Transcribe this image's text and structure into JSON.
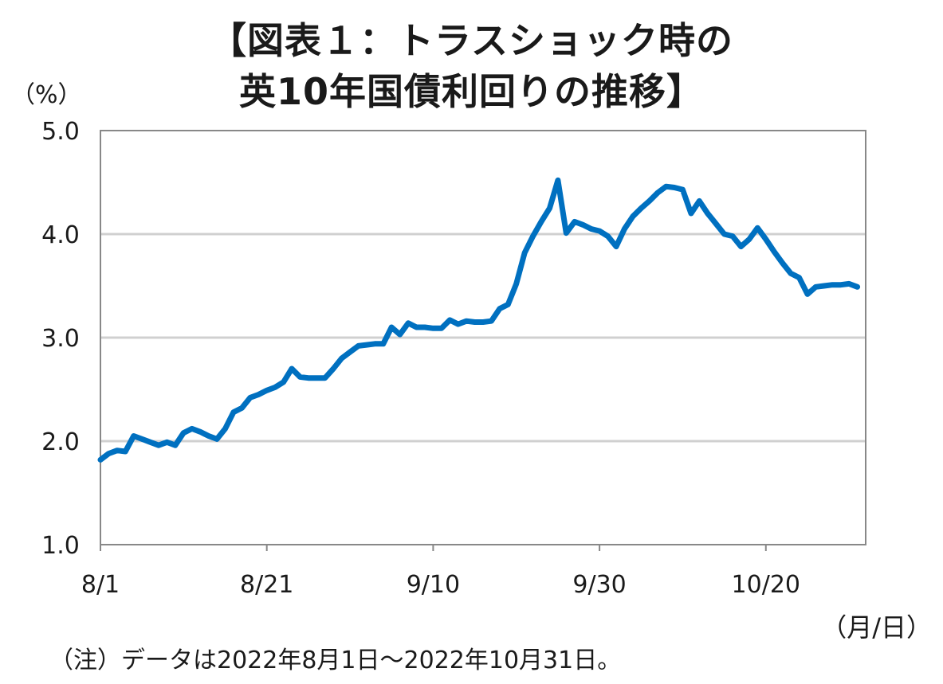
{
  "title": {
    "line1": "【図表１：トラスショック時の",
    "line2": "英10年国債利回りの推移】"
  },
  "y_unit": "（%）",
  "x_unit": "（月/日）",
  "note": "（注）データは2022年8月1日～2022年10月31日。",
  "colors": {
    "line": "#0070C0",
    "grid": "#d0d0d0",
    "axis": "#888888"
  },
  "chart_data": {
    "type": "line",
    "title": "【図表１：トラスショック時の英10年国債利回りの推移】",
    "ylabel": "（%）",
    "xlabel": "（月/日）",
    "ylim": [
      1.0,
      5.0
    ],
    "yticks": [
      "5.0",
      "4.0",
      "3.0",
      "2.0",
      "1.0"
    ],
    "xticks": [
      {
        "label": "8/1",
        "day": 0
      },
      {
        "label": "8/21",
        "day": 20
      },
      {
        "label": "9/10",
        "day": 40
      },
      {
        "label": "9/30",
        "day": 60
      },
      {
        "label": "10/20",
        "day": 80
      }
    ],
    "grid": true,
    "series": [
      {
        "x": [
          0,
          1,
          2,
          3,
          4,
          5,
          6,
          7,
          8,
          9,
          10,
          11,
          12,
          13,
          14,
          15,
          16,
          17,
          18,
          19,
          20,
          21,
          22,
          23,
          24,
          25,
          26,
          27,
          28,
          29,
          30,
          31,
          32,
          33,
          34,
          35,
          36,
          37,
          38,
          39,
          40,
          41,
          42,
          43,
          44,
          45,
          46,
          47,
          48,
          49,
          50,
          51,
          52,
          53,
          54,
          55,
          56,
          57,
          58,
          59,
          60,
          61,
          62,
          63,
          64,
          65,
          66,
          67,
          68,
          69,
          70,
          71,
          72,
          73,
          74,
          75,
          76,
          77,
          78,
          79,
          80,
          81,
          82,
          83,
          84,
          85,
          86,
          87,
          88,
          89,
          90,
          91
        ],
        "values": [
          1.82,
          1.88,
          1.91,
          1.9,
          2.05,
          2.02,
          1.99,
          1.96,
          1.99,
          1.96,
          2.08,
          2.12,
          2.09,
          2.05,
          2.02,
          2.12,
          2.28,
          2.32,
          2.42,
          2.45,
          2.49,
          2.52,
          2.57,
          2.7,
          2.62,
          2.61,
          2.61,
          2.61,
          2.7,
          2.8,
          2.86,
          2.92,
          2.93,
          2.94,
          2.94,
          3.1,
          3.03,
          3.14,
          3.1,
          3.1,
          3.09,
          3.09,
          3.17,
          3.13,
          3.16,
          3.15,
          3.15,
          3.16,
          3.28,
          3.32,
          3.52,
          3.82,
          3.98,
          4.12,
          4.25,
          4.52,
          4.01,
          4.12,
          4.09,
          4.05,
          4.03,
          3.98,
          3.88,
          4.05,
          4.17,
          4.25,
          4.32,
          4.4,
          4.46,
          4.45,
          4.43,
          4.2,
          4.32,
          4.2,
          4.1,
          4.0,
          3.98,
          3.88,
          3.95,
          4.06,
          3.95,
          3.83,
          3.72,
          3.62,
          3.58,
          3.42,
          3.49,
          3.5,
          3.51,
          3.51,
          3.52,
          3.49
        ]
      }
    ]
  }
}
